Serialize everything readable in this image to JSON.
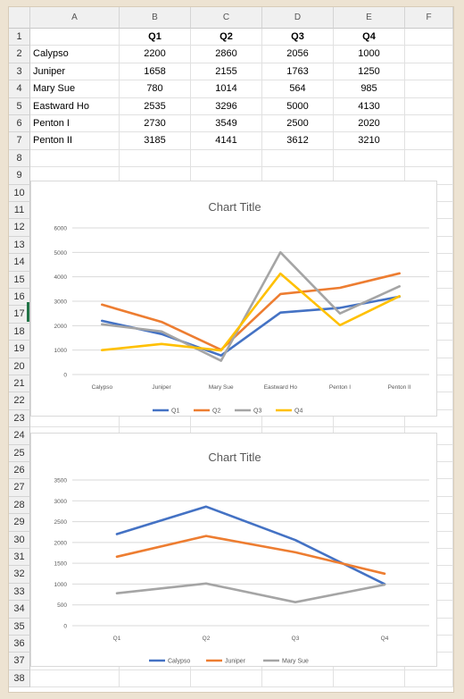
{
  "columns": [
    "A",
    "B",
    "C",
    "D",
    "E",
    "F"
  ],
  "row_numbers": [
    "1",
    "2",
    "3",
    "4",
    "5",
    "6",
    "7",
    "8",
    "9",
    "10",
    "11",
    "12",
    "13",
    "14",
    "15",
    "16",
    "17",
    "18",
    "19",
    "20",
    "21",
    "22",
    "23",
    "24",
    "25",
    "26",
    "27",
    "28",
    "29",
    "30",
    "31",
    "32",
    "33",
    "34",
    "35",
    "36",
    "37",
    "38"
  ],
  "table": {
    "header": [
      "",
      "Q1",
      "Q2",
      "Q3",
      "Q4"
    ],
    "rows": [
      [
        "Calypso",
        "2200",
        "2860",
        "2056",
        "1000"
      ],
      [
        "Juniper",
        "1658",
        "2155",
        "1763",
        "1250"
      ],
      [
        "Mary Sue",
        "780",
        "1014",
        "564",
        "985"
      ],
      [
        "Eastward Ho",
        "2535",
        "3296",
        "5000",
        "4130"
      ],
      [
        "Penton I",
        "2730",
        "3549",
        "2500",
        "2020"
      ],
      [
        "Penton II",
        "3185",
        "4141",
        "3612",
        "3210"
      ]
    ]
  },
  "chart_data": [
    {
      "type": "line",
      "title": "Chart Title",
      "categories": [
        "Calypso",
        "Juniper",
        "Mary Sue",
        "Eastward Ho",
        "Penton I",
        "Penton II"
      ],
      "ylim": [
        0,
        6000
      ],
      "yticks": [
        "0",
        "1000",
        "2000",
        "3000",
        "4000",
        "5000",
        "6000"
      ],
      "grid": true,
      "legend": "bottom",
      "series": [
        {
          "name": "Q1",
          "color": "#4472c4",
          "values": [
            2200,
            1658,
            780,
            2535,
            2730,
            3185
          ]
        },
        {
          "name": "Q2",
          "color": "#ed7d31",
          "values": [
            2860,
            2155,
            1014,
            3296,
            3549,
            4141
          ]
        },
        {
          "name": "Q3",
          "color": "#a5a5a5",
          "values": [
            2056,
            1763,
            564,
            5000,
            2500,
            3612
          ]
        },
        {
          "name": "Q4",
          "color": "#ffc000",
          "values": [
            1000,
            1250,
            985,
            4130,
            2020,
            3210
          ]
        }
      ]
    },
    {
      "type": "line",
      "title": "Chart Title",
      "categories": [
        "Q1",
        "Q2",
        "Q3",
        "Q4"
      ],
      "ylim": [
        0,
        3500
      ],
      "yticks": [
        "0",
        "500",
        "1000",
        "1500",
        "2000",
        "2500",
        "3000",
        "3500"
      ],
      "grid": true,
      "legend": "bottom",
      "series": [
        {
          "name": "Calypso",
          "color": "#4472c4",
          "values": [
            2200,
            2860,
            2056,
            1000
          ]
        },
        {
          "name": "Juniper",
          "color": "#ed7d31",
          "values": [
            1658,
            2155,
            1763,
            1250
          ]
        },
        {
          "name": "Mary Sue",
          "color": "#a5a5a5",
          "values": [
            780,
            1014,
            564,
            985
          ]
        }
      ]
    }
  ]
}
